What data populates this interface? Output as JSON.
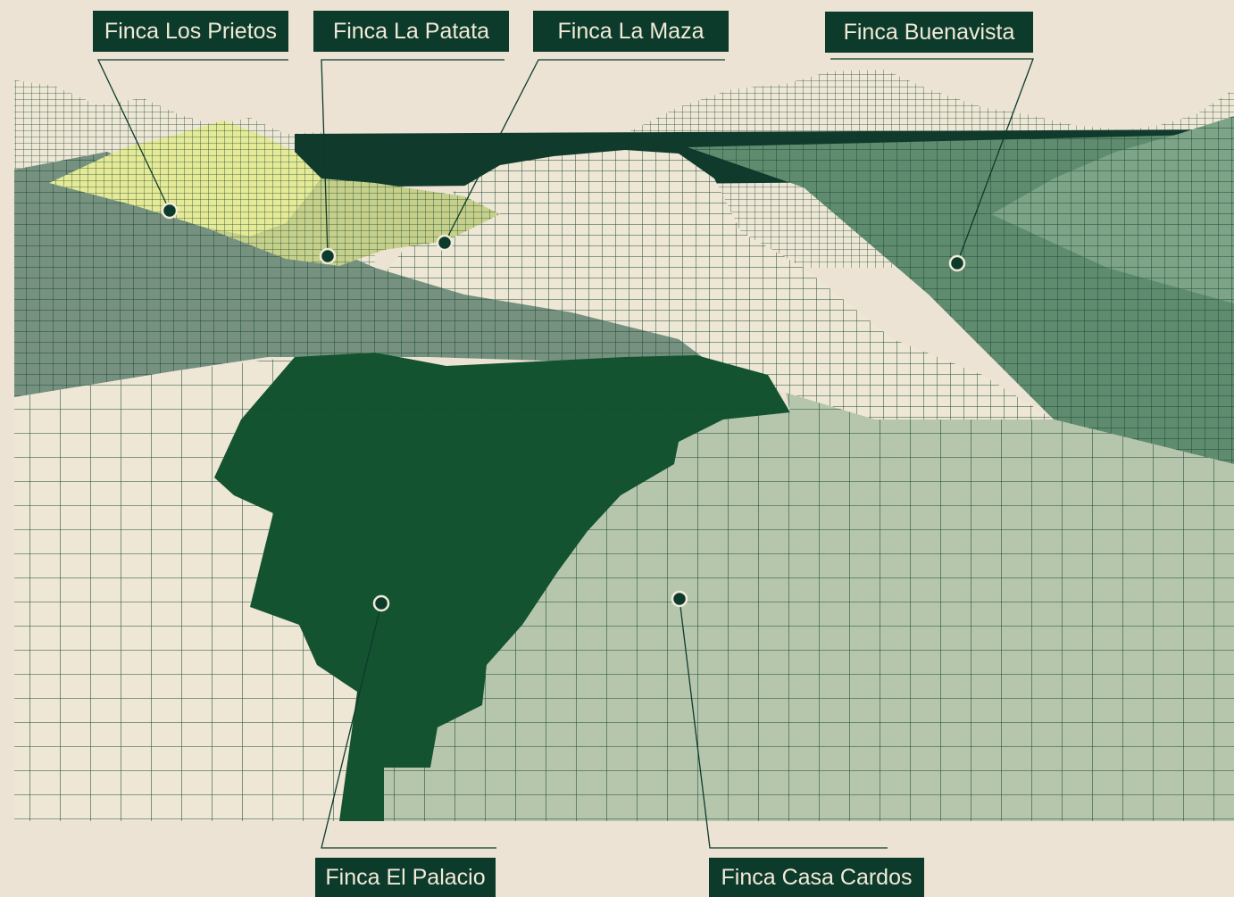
{
  "colors": {
    "background": "#ece3d4",
    "grid_line": "#1c4a36",
    "label_bg": "#0d3b2b",
    "label_text": "#f2ead9",
    "dark_band": "#0f3a2c",
    "cream_field": "#efe7d6",
    "gray_green_field": "#76917f",
    "yellow_field": "#e6ea97",
    "olive_field": "#c7d08a",
    "mid_green_field": "#5f8c6f",
    "light_green_field": "#b6c6ad",
    "dark_green_field": "#13532f"
  },
  "estates": {
    "los_prietos": "Finca Los Prietos",
    "la_patata": "Finca La Patata",
    "la_maza": "Finca La Maza",
    "buenavista": "Finca Buenavista",
    "el_palacio": "Finca El Palacio",
    "casa_cardos": "Finca Casa Cardos"
  }
}
